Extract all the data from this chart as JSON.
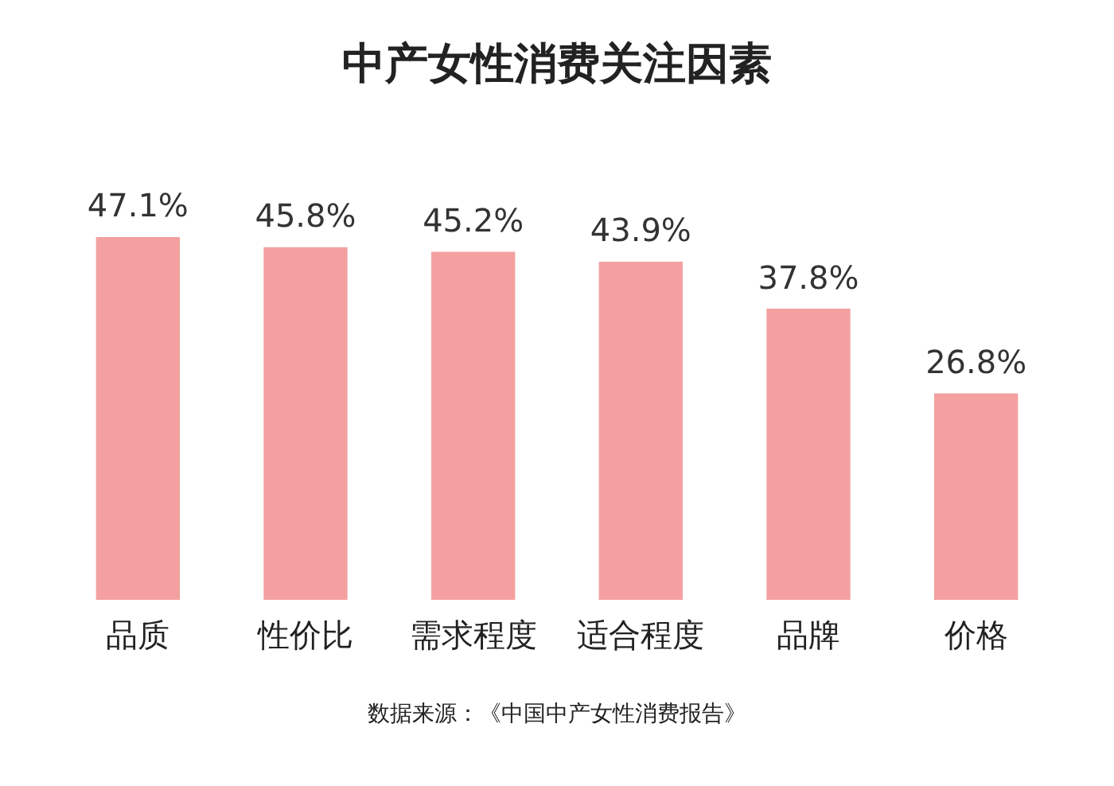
{
  "chart_data": {
    "type": "bar",
    "title": "中产女性消费关注因素",
    "categories": [
      "品质",
      "性价比",
      "需求程度",
      "适合程度",
      "品牌",
      "价格"
    ],
    "values": [
      47.1,
      45.8,
      45.2,
      43.9,
      37.8,
      26.8
    ],
    "color": "#f4a0a0",
    "value_labels": [
      "47.1%",
      "45.8%",
      "45.2%",
      "43.9%",
      "37.8%",
      "26.8%"
    ],
    "grid": false,
    "legend": false,
    "annotations": [
      "数据来源：《中国中产女性消费报告》"
    ]
  }
}
